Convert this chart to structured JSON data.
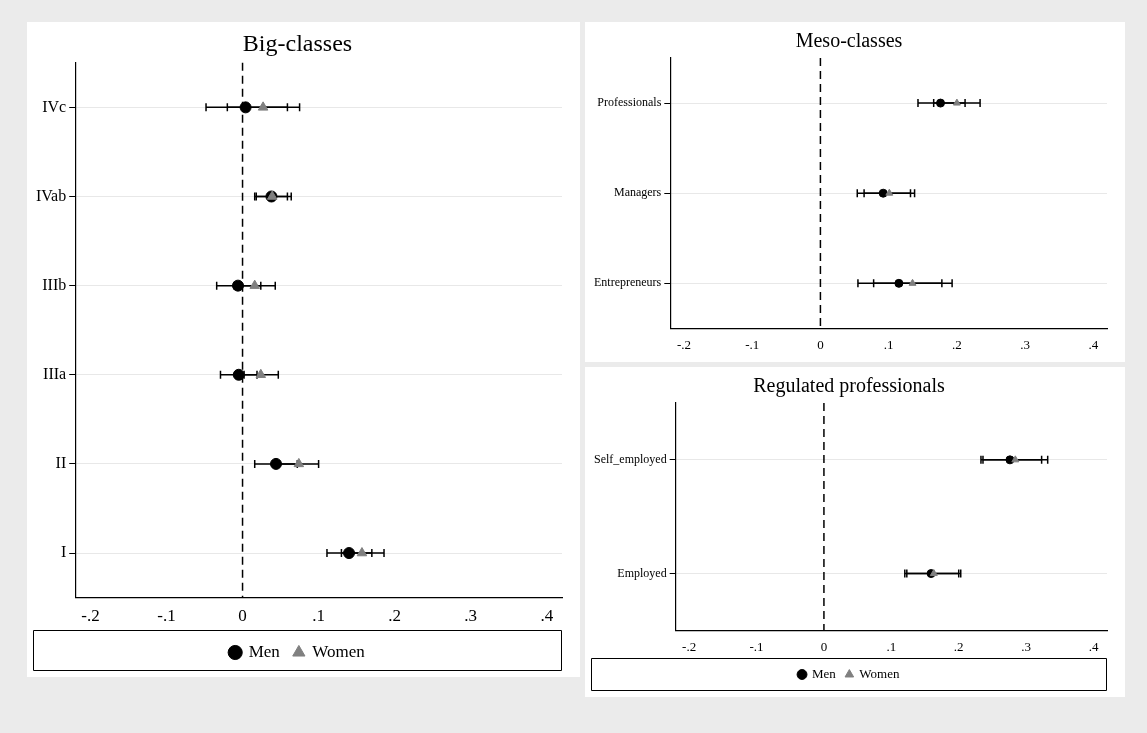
{
  "chart_data": [
    {
      "type": "scatter",
      "title": "Big-classes",
      "orientation": "horizontal",
      "categories": [
        "IVc",
        "IVab",
        "IIIb",
        "IIIa",
        "II",
        "I"
      ],
      "series": [
        {
          "name": "Men",
          "color": "#000000",
          "marker": "circle",
          "values": [
            0.004,
            0.038,
            -0.006,
            -0.005,
            0.044,
            0.14
          ],
          "errors": [
            [
              -0.048,
              0.059
            ],
            [
              0.016,
              0.059
            ],
            [
              -0.034,
              0.024
            ],
            [
              -0.029,
              0.019
            ],
            [
              0.016,
              0.072
            ],
            [
              0.111,
              0.17
            ]
          ]
        },
        {
          "name": "Women",
          "color": "#808080",
          "marker": "triangle",
          "values": [
            0.027,
            0.039,
            0.016,
            0.024,
            0.074,
            0.157
          ],
          "errors": [
            [
              -0.02,
              0.075
            ],
            [
              0.018,
              0.064
            ],
            [
              -0.011,
              0.043
            ],
            [
              0.002,
              0.047
            ],
            [
              0.048,
              0.1
            ],
            [
              0.13,
              0.186
            ]
          ]
        }
      ],
      "xlim": [
        -0.22,
        0.42
      ],
      "xticks": [
        {
          "value": -0.2,
          "label": "-.2"
        },
        {
          "value": -0.1,
          "label": "-.1"
        },
        {
          "value": 0,
          "label": "0"
        },
        {
          "value": 0.1,
          "label": ".1"
        },
        {
          "value": 0.2,
          "label": ".2"
        },
        {
          "value": 0.3,
          "label": ".3"
        },
        {
          "value": 0.4,
          "label": ".4"
        }
      ],
      "ref_lines": [
        {
          "axis": "x",
          "value": 0,
          "color": "#000000",
          "line_style": "dashed"
        }
      ],
      "grid": "y",
      "legend": "bottom"
    },
    {
      "type": "scatter",
      "title": "Meso-classes",
      "orientation": "horizontal",
      "categories": [
        "Professionals",
        "Managers",
        "Entrepreneurs"
      ],
      "series": [
        {
          "color": "#000000",
          "marker": "circle",
          "values": [
            0.176,
            0.092,
            0.115
          ],
          "errors": [
            [
              0.143,
              0.212
            ],
            [
              0.054,
              0.132
            ],
            [
              0.055,
              0.178
            ]
          ]
        },
        {
          "color": "#808080",
          "marker": "triangle",
          "values": [
            0.2,
            0.101,
            0.135
          ],
          "errors": [
            [
              0.166,
              0.234
            ],
            [
              0.064,
              0.138
            ],
            [
              0.078,
              0.193
            ]
          ]
        }
      ],
      "xlim": [
        -0.22,
        0.42
      ],
      "xticks": [
        {
          "value": -0.2,
          "label": "-.2"
        },
        {
          "value": -0.1,
          "label": "-.1"
        },
        {
          "value": 0,
          "label": "0"
        },
        {
          "value": 0.1,
          "label": ".1"
        },
        {
          "value": 0.2,
          "label": ".2"
        },
        {
          "value": 0.3,
          "label": ".3"
        },
        {
          "value": 0.4,
          "label": ".4"
        }
      ],
      "ref_lines": [
        {
          "axis": "x",
          "value": 0,
          "color": "#000000",
          "line_style": "dashed"
        }
      ],
      "grid": "y"
    },
    {
      "type": "scatter",
      "title": "Regulated professionals",
      "orientation": "horizontal",
      "categories": [
        "Self_employed",
        "Employed"
      ],
      "series": [
        {
          "name": "Men",
          "color": "#000000",
          "marker": "circle",
          "values": [
            0.276,
            0.159
          ],
          "errors": [
            [
              0.233,
              0.323
            ],
            [
              0.12,
              0.2
            ]
          ]
        },
        {
          "name": "Women",
          "color": "#808080",
          "marker": "triangle",
          "values": [
            0.284,
            0.163
          ],
          "errors": [
            [
              0.236,
              0.332
            ],
            [
              0.123,
              0.203
            ]
          ]
        }
      ],
      "xlim": [
        -0.22,
        0.42
      ],
      "xticks": [
        {
          "value": -0.2,
          "label": "-.2"
        },
        {
          "value": -0.1,
          "label": "-.1"
        },
        {
          "value": 0,
          "label": "0"
        },
        {
          "value": 0.1,
          "label": ".1"
        },
        {
          "value": 0.2,
          "label": ".2"
        },
        {
          "value": 0.3,
          "label": ".3"
        },
        {
          "value": 0.4,
          "label": ".4"
        }
      ],
      "ref_lines": [
        {
          "axis": "x",
          "value": 0,
          "color": "#000000",
          "line_style": "dashed"
        }
      ],
      "grid": "y",
      "legend": "bottom"
    }
  ]
}
